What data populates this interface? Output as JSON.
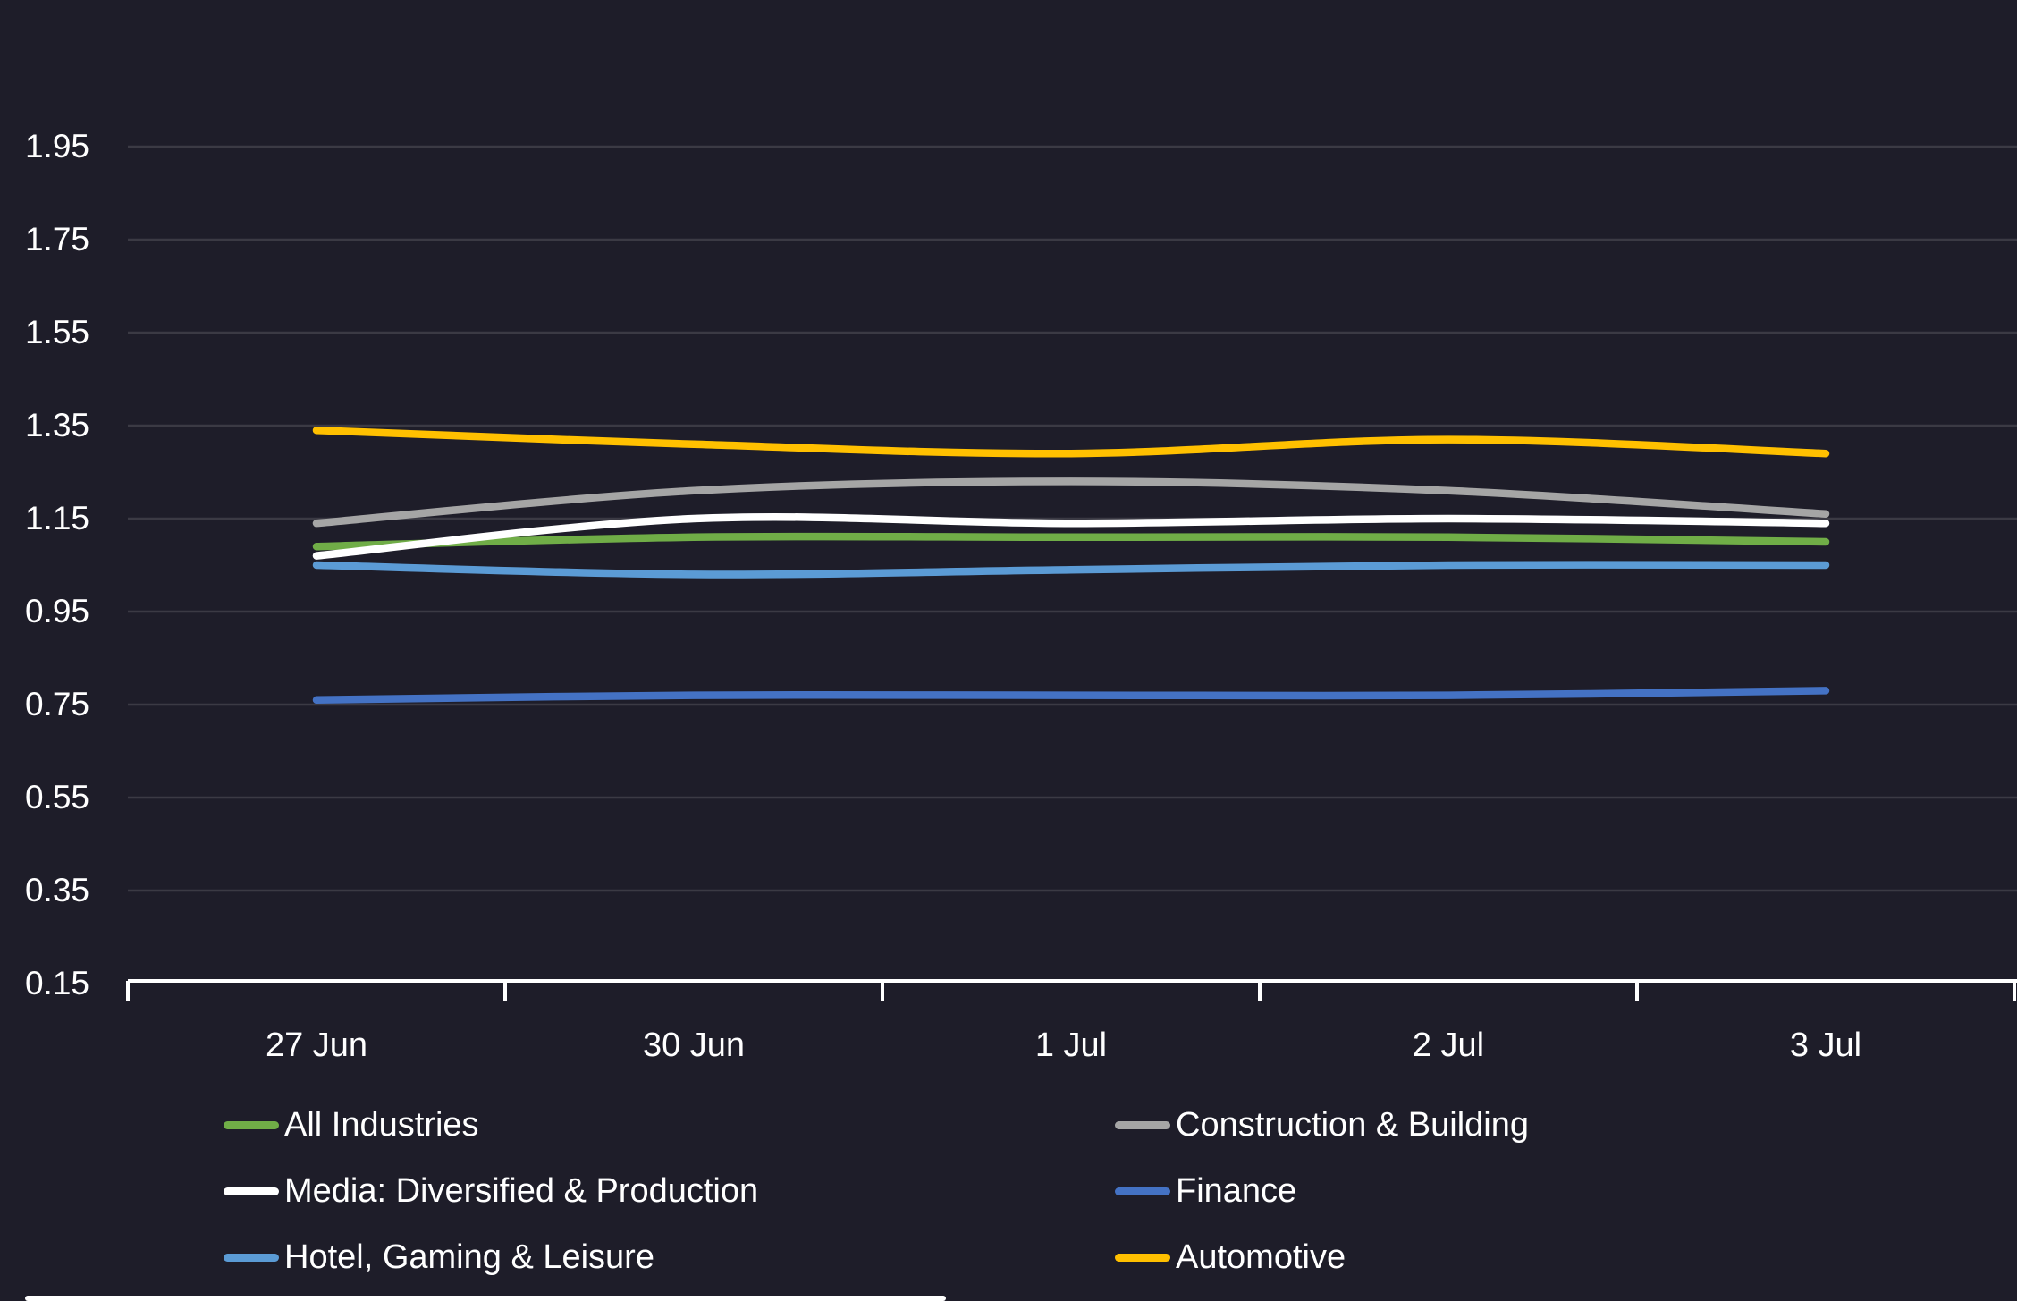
{
  "chart_data": {
    "type": "line",
    "title": "",
    "xlabel": "",
    "ylabel": "",
    "categories": [
      "27 Jun",
      "30 Jun",
      "1 Jul",
      "2 Jul",
      "3 Jul"
    ],
    "yticks": [
      "1.95",
      "1.75",
      "1.55",
      "1.35",
      "1.15",
      "0.95",
      "0.75",
      "0.55",
      "0.35",
      "0.15"
    ],
    "ylim": [
      0.15,
      1.95
    ],
    "y_tick_interval": 0.2,
    "grid": true,
    "legend_position": "bottom",
    "legend_columns": 2,
    "background_color": "#1E1D29",
    "gridline_color": "#3B3A44",
    "axis_color": "#FFFFFF",
    "text_color": "#FFFFFF",
    "series": [
      {
        "name": "All Industries",
        "color": "#70AD47",
        "values": [
          1.09,
          1.11,
          1.11,
          1.11,
          1.1
        ]
      },
      {
        "name": "Construction & Building",
        "color": "#A5A5A5",
        "values": [
          1.14,
          1.21,
          1.23,
          1.21,
          1.16
        ]
      },
      {
        "name": "Media: Diversified & Production",
        "color": "#FFFFFF",
        "values": [
          1.07,
          1.15,
          1.14,
          1.15,
          1.14
        ]
      },
      {
        "name": "Finance",
        "color": "#4472C4",
        "values": [
          0.76,
          0.77,
          0.77,
          0.77,
          0.78
        ]
      },
      {
        "name": "Hotel, Gaming & Leisure",
        "color": "#5B9BD5",
        "values": [
          1.05,
          1.03,
          1.04,
          1.05,
          1.05
        ]
      },
      {
        "name": "Automotive",
        "color": "#FFC000",
        "values": [
          1.34,
          1.31,
          1.29,
          1.32,
          1.29
        ]
      }
    ]
  },
  "ui": {
    "scrollbar_color": "#FFFFFF"
  }
}
